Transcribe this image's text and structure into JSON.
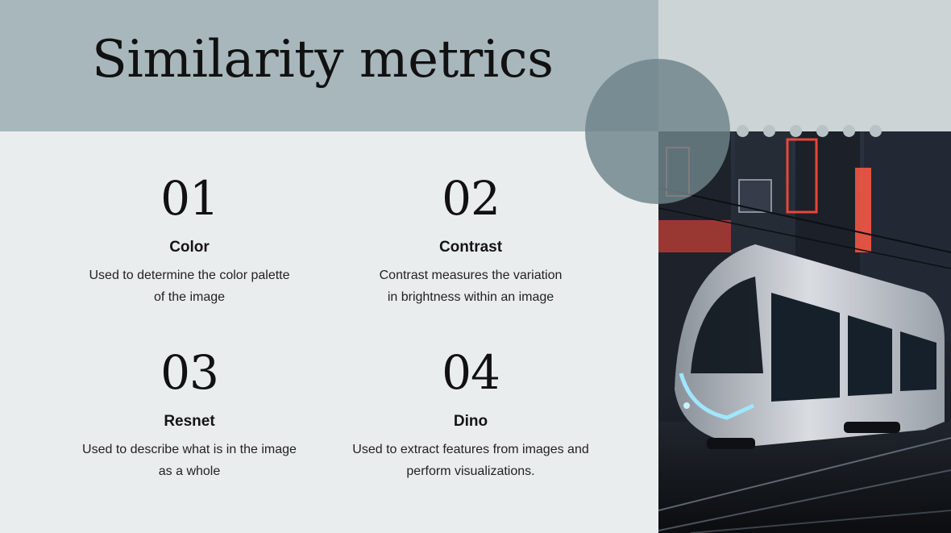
{
  "slide": {
    "title": "Similarity metrics",
    "items": [
      {
        "number": "01",
        "heading": "Color",
        "desc_line1": "Used to determine the color palette",
        "desc_line2": "of the image"
      },
      {
        "number": "02",
        "heading": "Contrast",
        "desc_line1": "Contrast measures the variation",
        "desc_line2": "in brightness within an image"
      },
      {
        "number": "03",
        "heading": "Resnet",
        "desc_line1": "Used to describe what is in the image",
        "desc_line2": "as a whole"
      },
      {
        "number": "04",
        "heading": "Dino",
        "desc_line1": "Used to extract features from images and",
        "desc_line2": "perform visualizations."
      }
    ]
  },
  "colors": {
    "header_band": "#a8b7bc",
    "background": "#eaedee",
    "accent_circle": "#6e848a",
    "neon_red": "#ff4a3a",
    "tram_light": "#9fe6ff"
  },
  "image": {
    "subject": "futuristic tram in a neon-lit city street at night"
  }
}
